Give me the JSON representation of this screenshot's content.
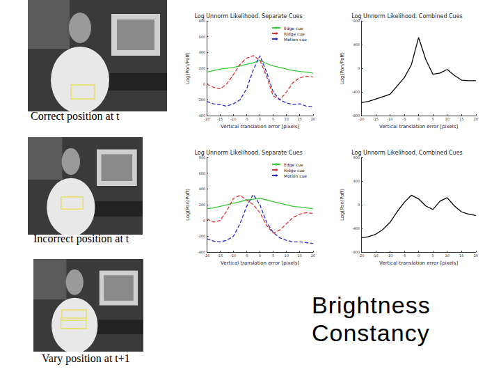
{
  "chart_data": [
    {
      "type": "line",
      "title": "Log Unnorm Likelihood. Separate Cues",
      "x_label": "Vertical translation error [pixels]",
      "y_label": "Log(Pon/Poff)",
      "x": [
        -20,
        -17.5,
        -15,
        -12.5,
        -10,
        -7.5,
        -5,
        -2.5,
        0,
        2.5,
        5,
        7.5,
        10,
        12.5,
        15,
        17.5,
        20
      ],
      "series": [
        {
          "name": "Edge cue",
          "color": "#33cc33",
          "line_style": "solid",
          "values": [
            150,
            170,
            190,
            200,
            210,
            230,
            250,
            270,
            300,
            260,
            230,
            210,
            190,
            170,
            160,
            150,
            140
          ]
        },
        {
          "name": "Ridge cue",
          "color": "#e03030",
          "line_style": "dashed",
          "values": [
            0,
            -40,
            -60,
            0,
            120,
            250,
            330,
            360,
            300,
            100,
            -150,
            -200,
            -100,
            20,
            80,
            100,
            90
          ]
        },
        {
          "name": "Motion cue",
          "color": "#2a2ad0",
          "line_style": "dashed",
          "values": [
            -220,
            -250,
            -260,
            -280,
            -250,
            -200,
            -60,
            180,
            360,
            150,
            -100,
            -200,
            -240,
            -260,
            -250,
            -280,
            -290
          ]
        }
      ],
      "xlim": [
        -20,
        20
      ],
      "xticks": [
        -20,
        -15,
        -10,
        -5,
        0,
        5,
        10,
        15,
        20
      ],
      "ylim": [
        -400,
        800
      ],
      "yticks": [
        -400,
        -200,
        0,
        200,
        400,
        600,
        800
      ],
      "legend": "upper right"
    },
    {
      "type": "line",
      "title": "Log Unnorm Likelihood. Combined Cues",
      "x_label": "Vertical translation error [pixels]",
      "y_label": "Log(Pon/Poff)",
      "x": [
        -20,
        -17.5,
        -15,
        -12.5,
        -10,
        -7.5,
        -5,
        -2.5,
        0,
        2.5,
        5,
        7.5,
        10,
        12.5,
        15,
        17.5,
        20
      ],
      "series": [
        {
          "color": "#000000",
          "line_style": "solid",
          "values": [
            -580,
            -560,
            -520,
            -480,
            -440,
            -300,
            -160,
            60,
            520,
            150,
            -100,
            -80,
            -20,
            -120,
            -200,
            -210,
            -210
          ]
        }
      ],
      "xlim": [
        -20,
        20
      ],
      "xticks": [
        -20,
        -15,
        -10,
        -5,
        0,
        5,
        10,
        15,
        20
      ],
      "ylim": [
        -800,
        800
      ],
      "yticks": [
        -800,
        -400,
        0,
        400,
        800
      ]
    },
    {
      "type": "line",
      "title": "Log Unnorm Likelihood. Separate Cues",
      "x_label": "Vertical translation error [pixels]",
      "y_label": "Log(Pon/Poff)",
      "x": [
        -20,
        -17.5,
        -15,
        -12.5,
        -10,
        -7.5,
        -5,
        -2.5,
        0,
        2.5,
        5,
        7.5,
        10,
        12.5,
        15,
        17.5,
        20
      ],
      "series": [
        {
          "name": "Edge cue",
          "color": "#33cc33",
          "line_style": "solid",
          "values": [
            150,
            160,
            180,
            200,
            220,
            240,
            260,
            270,
            280,
            260,
            240,
            220,
            200,
            180,
            170,
            160,
            150
          ]
        },
        {
          "name": "Ridge cue",
          "color": "#e03030",
          "line_style": "dashed",
          "values": [
            20,
            -20,
            0,
            120,
            280,
            320,
            260,
            200,
            100,
            -60,
            -160,
            -120,
            -40,
            40,
            80,
            100,
            90
          ]
        },
        {
          "name": "Motion cue",
          "color": "#2a2ad0",
          "line_style": "dashed",
          "values": [
            -230,
            -260,
            -270,
            -250,
            -200,
            -40,
            180,
            330,
            200,
            -20,
            -150,
            -220,
            -250,
            -270,
            -270,
            -280,
            -290
          ]
        }
      ],
      "xlim": [
        -20,
        20
      ],
      "xticks": [
        -20,
        -15,
        -10,
        -5,
        0,
        5,
        10,
        15,
        20
      ],
      "ylim": [
        -400,
        800
      ],
      "yticks": [
        -400,
        -200,
        0,
        200,
        400,
        600,
        800
      ],
      "legend": "upper right"
    },
    {
      "type": "line",
      "title": "Log Unnorm Likelihood. Combined Cues",
      "x_label": "Vertical translation error [pixels]",
      "y_label": "Log(Pon/Poff)",
      "x": [
        -20,
        -17.5,
        -15,
        -12.5,
        -10,
        -7.5,
        -5,
        -2.5,
        0,
        2.5,
        5,
        7.5,
        10,
        12.5,
        15,
        17.5,
        20
      ],
      "series": [
        {
          "color": "#000000",
          "line_style": "solid",
          "values": [
            -560,
            -540,
            -500,
            -420,
            -300,
            -120,
            40,
            160,
            100,
            -20,
            -80,
            60,
            120,
            -20,
            -120,
            -160,
            -180
          ]
        }
      ],
      "xlim": [
        -20,
        20
      ],
      "xticks": [
        -20,
        -15,
        -10,
        -5,
        0,
        5,
        10,
        15,
        20
      ],
      "ylim": [
        -800,
        800
      ],
      "yticks": [
        -800,
        -400,
        0,
        400,
        800
      ]
    }
  ],
  "captions": [
    "Correct position at t",
    "Incorrect position at t",
    "Vary position at t+1"
  ],
  "heading": "Brightness Constancy"
}
